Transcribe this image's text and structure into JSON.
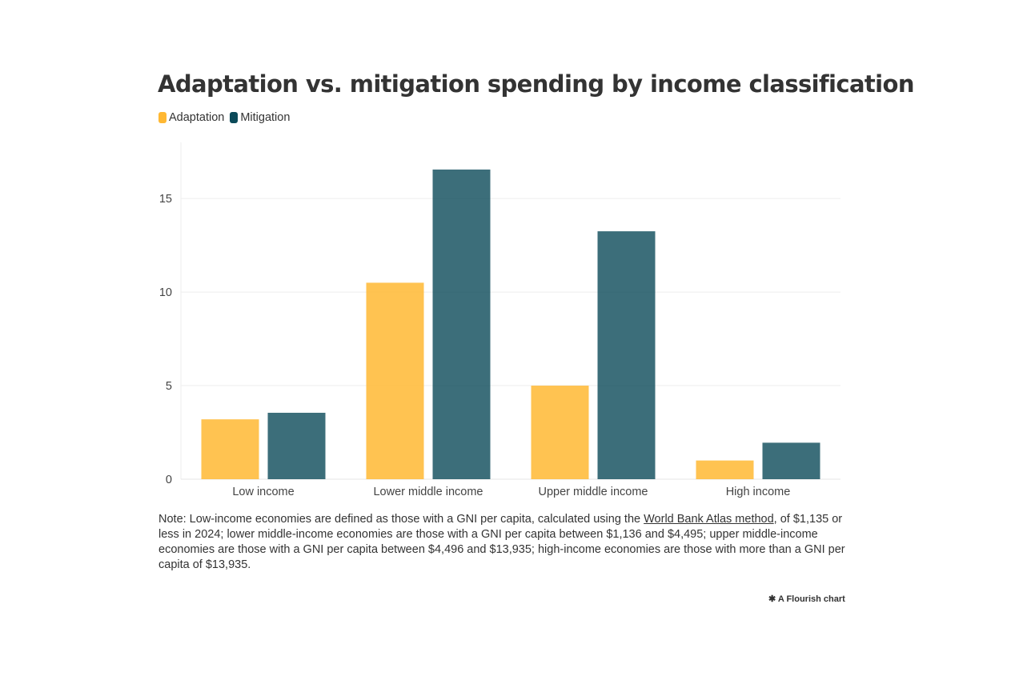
{
  "chart_data": {
    "type": "bar",
    "title": "Adaptation vs. mitigation spending by income classification",
    "categories": [
      "Low income",
      "Lower middle income",
      "Upper middle income",
      "High income"
    ],
    "series": [
      {
        "name": "Adaptation",
        "color": "#ffb833",
        "values": [
          3.2,
          10.5,
          5.0,
          1.0
        ]
      },
      {
        "name": "Mitigation",
        "color": "#0b4a59",
        "values": [
          3.55,
          16.55,
          13.25,
          1.95
        ]
      }
    ],
    "yticks": [
      "0",
      "5",
      "10",
      "15"
    ],
    "ylim": [
      0,
      18
    ],
    "grid": true,
    "legend": "top-left",
    "xlabel": "",
    "ylabel": ""
  },
  "note": {
    "before": "Note: Low-income economies are defined as those with a GNI per capita, calculated using the ",
    "link": "World Bank Atlas method",
    "after": ", of $1,135 or less in 2024; lower middle-income economies are those with a GNI per capita between $1,136 and $4,495; upper middle-income economies are those with a GNI per capita between $4,496 and $13,935; high-income economies are those with more than a GNI per capita of $13,935."
  },
  "credit": "A Flourish chart"
}
